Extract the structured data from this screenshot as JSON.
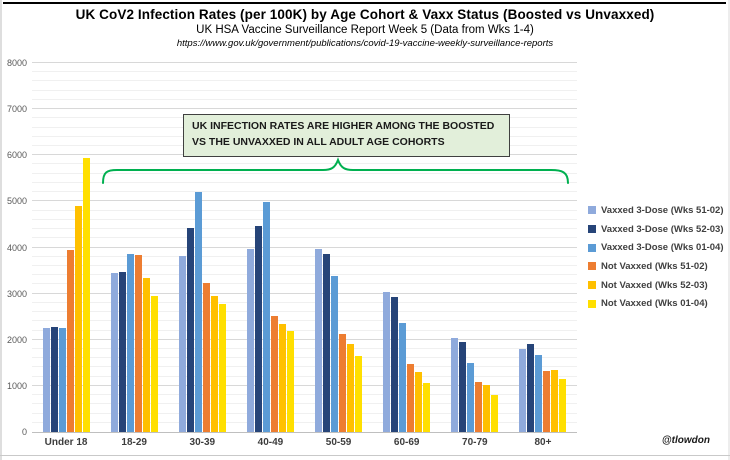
{
  "header": {
    "title": "UK CoV2 Infection Rates (per 100K) by Age Cohort & Vaxx Status (Boosted vs Unvaxxed)",
    "subtitle": "UK HSA Vaccine Surveillance Report Week 5 (Data from Wks 1-4)",
    "source_url": "https://www.gov.uk/government/publications/covid-19-vaccine-weekly-surveillance-reports"
  },
  "annotation": {
    "line1": "UK INFECTION RATES ARE HIGHER AMONG THE BOOSTED",
    "line2": "VS THE UNVAXXED IN ALL ADULT AGE COHORTS",
    "brace_color": "#00B050"
  },
  "attribution": "@tlowdon",
  "chart_data": {
    "type": "bar",
    "title": "UK CoV2 Infection Rates (per 100K) by Age Cohort & Vaxx Status (Boosted vs Unvaxxed)",
    "subtitle": "UK HSA Vaccine Surveillance Report Week 5 (Data from Wks 1-4)",
    "xlabel": "",
    "ylabel": "",
    "ylim": [
      0,
      8000
    ],
    "y_major_step": 1000,
    "y_minor_step": 200,
    "grid": true,
    "legend_position": "right",
    "categories": [
      "Under 18",
      "18-29",
      "30-39",
      "40-49",
      "50-59",
      "60-69",
      "70-79",
      "80+"
    ],
    "series": [
      {
        "name": "Vaxxed 3-Dose (Wks 51-02)",
        "color": "#8FAADC",
        "values": [
          2250,
          3450,
          3820,
          3960,
          3960,
          3040,
          2030,
          1790
        ]
      },
      {
        "name": "Vaxxed 3-Dose (Wks 52-03)",
        "color": "#264478",
        "values": [
          2270,
          3470,
          4420,
          4460,
          3850,
          2930,
          1960,
          1900
        ]
      },
      {
        "name": "Vaxxed 3-Dose (Wks 01-04)",
        "color": "#5B9BD5",
        "values": [
          2250,
          3870,
          5210,
          4980,
          3390,
          2360,
          1500,
          1670
        ]
      },
      {
        "name": "Not Vaxxed (Wks 51-02)",
        "color": "#ED7D31",
        "values": [
          3950,
          3830,
          3220,
          2520,
          2120,
          1470,
          1090,
          1330
        ]
      },
      {
        "name": "Not Vaxxed (Wks 52-03)",
        "color": "#FFC000",
        "values": [
          4900,
          3330,
          2950,
          2350,
          1900,
          1310,
          1020,
          1340
        ]
      },
      {
        "name": "Not Vaxxed (Wks 01-04)",
        "color": "#FFDF00",
        "values": [
          5950,
          2950,
          2770,
          2190,
          1640,
          1070,
          800,
          1150
        ]
      }
    ]
  }
}
